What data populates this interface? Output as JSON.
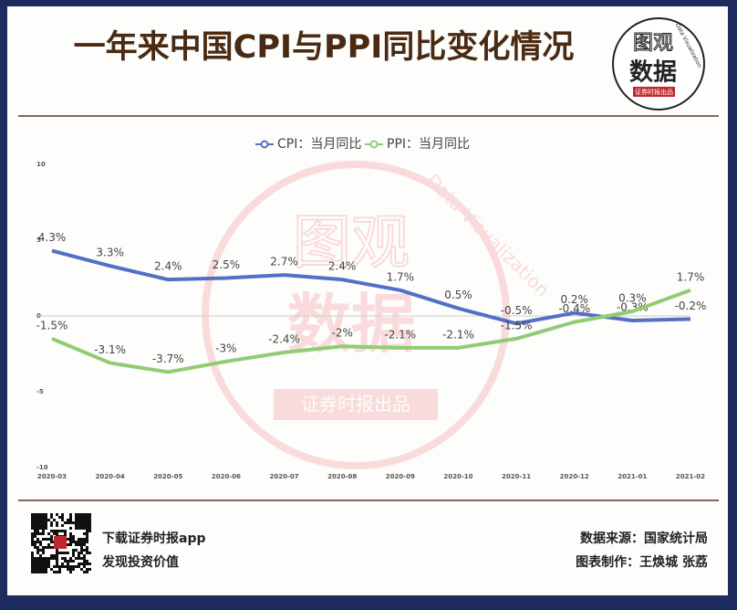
{
  "title": "一年来中国CPI与PPI同比变化情况",
  "logo": {
    "line1": "图观",
    "line2": "数据",
    "arc": "Data Visualization",
    "sub": "证券时报出品"
  },
  "watermark": {
    "line1": "图观",
    "line2": "数据",
    "arc": "Data Visualization",
    "sub": "证券时报出品"
  },
  "chart_data": {
    "type": "line",
    "categories": [
      "2020-03",
      "2020-04",
      "2020-05",
      "2020-06",
      "2020-07",
      "2020-08",
      "2020-09",
      "2020-10",
      "2020-11",
      "2020-12",
      "2021-01",
      "2021-02"
    ],
    "series": [
      {
        "name": "CPI：当月同比",
        "color": "#5470c6",
        "values": [
          4.3,
          3.3,
          2.4,
          2.5,
          2.7,
          2.4,
          1.7,
          0.5,
          -0.5,
          0.2,
          -0.3,
          -0.2
        ],
        "value_labels": [
          "4.3%",
          "3.3%",
          "2.4%",
          "2.5%",
          "2.7%",
          "2.4%",
          "1.7%",
          "0.5%",
          "-0.5%",
          "0.2%",
          "-0.3%",
          "-0.2%"
        ]
      },
      {
        "name": "PPI：当月同比",
        "color": "#91cc75",
        "values": [
          -1.5,
          -3.1,
          -3.7,
          -3,
          -2.4,
          -2,
          -2.1,
          -2.1,
          -1.5,
          -0.4,
          0.3,
          1.7
        ],
        "value_labels": [
          "-1.5%",
          "-3.1%",
          "-3.7%",
          "-3%",
          "-2.4%",
          "-2%",
          "-2.1%",
          "-2.1%",
          "-1.5%",
          "-0.4%",
          "0.3%",
          "1.7%"
        ]
      }
    ],
    "ylim": [
      -10,
      10
    ],
    "yticks": [
      -10,
      -5,
      0,
      5,
      10
    ],
    "grid": false,
    "legend": "top"
  },
  "footer": {
    "app": "下载证券时报app",
    "slogan": "发现投资价值",
    "source": "数据来源：国家统计局",
    "author": "图表制作：王焕城 张荔"
  }
}
